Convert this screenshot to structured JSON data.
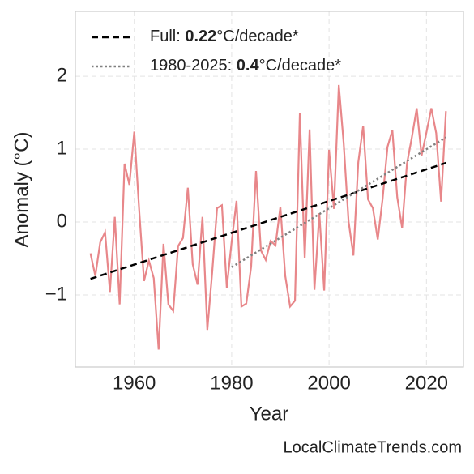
{
  "chart_data": {
    "type": "line",
    "xlabel": "Year",
    "ylabel": "Anomaly (°C)",
    "watermark": "LocalClimateTrends.com",
    "xlim": [
      1947.9,
      2027.6
    ],
    "xticks": [
      1960,
      1980,
      2000,
      2020
    ],
    "ylim": [
      -1.99,
      2.89
    ],
    "yticks": [
      {
        "value": -1,
        "label": "−1"
      },
      0,
      1,
      2
    ],
    "grid": true,
    "legend": "upper left",
    "x": [
      1951,
      1952,
      1953,
      1954,
      1955,
      1956,
      1957,
      1958,
      1959,
      1960,
      1961,
      1962,
      1963,
      1964,
      1965,
      1966,
      1967,
      1968,
      1969,
      1970,
      1971,
      1972,
      1973,
      1974,
      1975,
      1976,
      1977,
      1978,
      1979,
      1980,
      1981,
      1982,
      1983,
      1984,
      1985,
      1986,
      1987,
      1988,
      1989,
      1990,
      1991,
      1992,
      1993,
      1994,
      1995,
      1996,
      1997,
      1998,
      1999,
      2000,
      2001,
      2002,
      2003,
      2004,
      2005,
      2006,
      2007,
      2008,
      2009,
      2010,
      2011,
      2012,
      2013,
      2014,
      2015,
      2016,
      2017,
      2018,
      2019,
      2020,
      2021,
      2022,
      2023,
      2024
    ],
    "series": [
      {
        "color": "#e8878a",
        "style": "solid",
        "values": [
          -0.43,
          -0.74,
          -0.28,
          -0.14,
          -0.96,
          0.07,
          -1.13,
          0.8,
          0.51,
          1.24,
          0.17,
          -0.81,
          -0.53,
          -0.77,
          -1.75,
          -0.3,
          -1.13,
          -1.22,
          -0.33,
          -0.22,
          0.47,
          -0.58,
          -0.86,
          0.07,
          -1.48,
          -0.69,
          0.19,
          0.23,
          -0.9,
          -0.27,
          0.29,
          -1.16,
          -1.12,
          -0.61,
          0.7,
          -0.39,
          -0.52,
          -0.26,
          -0.32,
          0.21,
          -0.74,
          -1.16,
          -1.08,
          1.49,
          -0.5,
          1.27,
          -0.93,
          0.12,
          -0.94,
          0.99,
          0.18,
          1.88,
          1.08,
          0.01,
          -0.46,
          0.82,
          1.32,
          0.31,
          0.19,
          -0.24,
          0.32,
          1.03,
          1.26,
          0.34,
          -0.08,
          0.8,
          1.16,
          1.56,
          0.91,
          1.23,
          1.56,
          1.22,
          0.28,
          1.52
        ]
      },
      {
        "label": {
          "prefix": "Full: ",
          "rate": "0.22",
          "unit": "°C/decade*"
        },
        "color": "#000000",
        "style": "dashed",
        "x": [
          1951,
          2024
        ],
        "values": [
          -0.78,
          0.81
        ]
      },
      {
        "label": {
          "prefix": "1980-2025: ",
          "rate": "0.4",
          "unit": "°C/decade*"
        },
        "color": "#808080",
        "style": "dotted",
        "x": [
          1980,
          2024
        ],
        "values": [
          -0.62,
          1.16
        ]
      }
    ]
  }
}
